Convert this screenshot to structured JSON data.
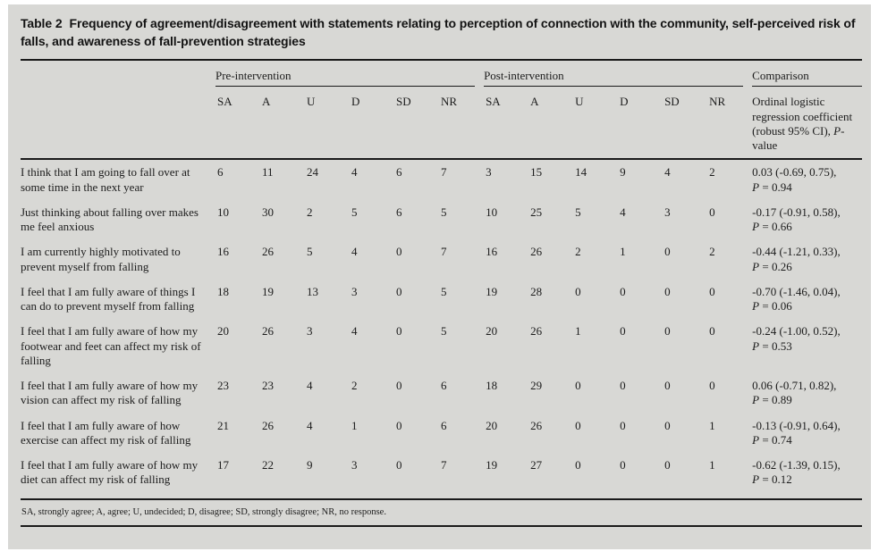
{
  "title": {
    "label": "Table 2",
    "text": "Frequency of agreement/disagreement with statements relating to perception of connection with the community, self-perceived risk of falls, and awareness of fall-prevention strategies"
  },
  "table": {
    "groups": {
      "pre": "Pre-intervention",
      "post": "Post-intervention",
      "comparison": "Comparison"
    },
    "response_headers": [
      "SA",
      "A",
      "U",
      "D",
      "SD",
      "NR"
    ],
    "comparison_subheader": {
      "part1": "Ordinal logistic regression coefficient (robust 95% CI), ",
      "p_label": "P",
      "part2": "-value"
    },
    "rows": [
      {
        "statement": "I think that I am going to fall over at some time in the next year",
        "pre": [
          6,
          11,
          24,
          4,
          6,
          7
        ],
        "post": [
          3,
          15,
          14,
          9,
          4,
          2
        ],
        "comparison": {
          "line1": "0.03 (-0.69, 0.75),",
          "line2": "P = 0.94"
        }
      },
      {
        "statement": "Just thinking about falling over makes me feel anxious",
        "pre": [
          10,
          30,
          2,
          5,
          6,
          5
        ],
        "post": [
          10,
          25,
          5,
          4,
          3,
          0
        ],
        "comparison": {
          "line1": "-0.17 (-0.91, 0.58),",
          "line2": "P = 0.66"
        }
      },
      {
        "statement": "I am currently highly motivated to prevent myself from falling",
        "pre": [
          16,
          26,
          5,
          4,
          0,
          7
        ],
        "post": [
          16,
          26,
          2,
          1,
          0,
          2
        ],
        "comparison": {
          "line1": "-0.44 (-1.21, 0.33),",
          "line2": "P = 0.26"
        }
      },
      {
        "statement": "I feel that I am fully aware of things I can do to prevent myself from falling",
        "pre": [
          18,
          19,
          13,
          3,
          0,
          5
        ],
        "post": [
          19,
          28,
          0,
          0,
          0,
          0
        ],
        "comparison": {
          "line1": "-0.70 (-1.46, 0.04),",
          "line2": "P = 0.06"
        }
      },
      {
        "statement": "I feel that I am fully aware of how my footwear and feet can affect my risk of falling",
        "pre": [
          20,
          26,
          3,
          4,
          0,
          5
        ],
        "post": [
          20,
          26,
          1,
          0,
          0,
          0
        ],
        "comparison": {
          "line1": "-0.24 (-1.00, 0.52),",
          "line2": "P = 0.53"
        }
      },
      {
        "statement": "I feel that I am fully aware of how my vision can affect my risk of falling",
        "pre": [
          23,
          23,
          4,
          2,
          0,
          6
        ],
        "post": [
          18,
          29,
          0,
          0,
          0,
          0
        ],
        "comparison": {
          "line1": "0.06 (-0.71, 0.82),",
          "line2": "P = 0.89"
        }
      },
      {
        "statement": "I feel that I am fully aware of how exercise can affect my risk of falling",
        "pre": [
          21,
          26,
          4,
          1,
          0,
          6
        ],
        "post": [
          20,
          26,
          0,
          0,
          0,
          1
        ],
        "comparison": {
          "line1": "-0.13 (-0.91, 0.64),",
          "line2": "P = 0.74"
        }
      },
      {
        "statement": "I feel that I am fully aware of how my diet can affect my risk of falling",
        "pre": [
          17,
          22,
          9,
          3,
          0,
          7
        ],
        "post": [
          19,
          27,
          0,
          0,
          0,
          1
        ],
        "comparison": {
          "line1": "-0.62 (-1.39, 0.15),",
          "line2": "P = 0.12"
        }
      }
    ],
    "footnote": "SA, strongly agree; A, agree; U, undecided; D, disagree; SD, strongly disagree; NR, no response."
  },
  "colors": {
    "page_background": "#ffffff",
    "panel_background": "#d8d8d5",
    "text": "#1c1c1c",
    "rule": "#1a1a1a"
  }
}
